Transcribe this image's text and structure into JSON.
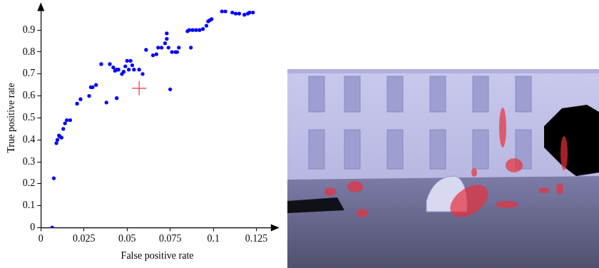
{
  "chart_data": {
    "type": "scatter",
    "x_label": "False positive rate",
    "y_label": "True positive rate",
    "xlim": [
      0,
      0.135
    ],
    "ylim": [
      0,
      1
    ],
    "xticks": [
      0,
      0.025,
      0.05,
      0.075,
      0.1,
      0.125
    ],
    "yticks": [
      0,
      0.1,
      0.2,
      0.3,
      0.4,
      0.5,
      0.6,
      0.7,
      0.8,
      0.9
    ],
    "grid": false,
    "series": [
      {
        "color": "#0000ff",
        "marker": "circle",
        "x": [
          0.0066,
          0.0075,
          0.009,
          0.0096,
          0.0105,
          0.011,
          0.012,
          0.013,
          0.014,
          0.015,
          0.017,
          0.021,
          0.023,
          0.028,
          0.029,
          0.03,
          0.032,
          0.035,
          0.038,
          0.04,
          0.042,
          0.043,
          0.044,
          0.044,
          0.045,
          0.047,
          0.048,
          0.049,
          0.05,
          0.051,
          0.052,
          0.053,
          0.054,
          0.057,
          0.059,
          0.061,
          0.065,
          0.067,
          0.068,
          0.07,
          0.072,
          0.073,
          0.073,
          0.074,
          0.075,
          0.076,
          0.078,
          0.079,
          0.08,
          0.085,
          0.086,
          0.087,
          0.088,
          0.09,
          0.092,
          0.094,
          0.096,
          0.097,
          0.098,
          0.099,
          0.105,
          0.107,
          0.111,
          0.113,
          0.115,
          0.118,
          0.12,
          0.121,
          0.123
        ],
        "values": [
          0,
          0.225,
          0.385,
          0.4,
          0.42,
          0.415,
          0.41,
          0.45,
          0.475,
          0.49,
          0.49,
          0.565,
          0.585,
          0.6,
          0.64,
          0.64,
          0.65,
          0.745,
          0.57,
          0.745,
          0.73,
          0.715,
          0.72,
          0.59,
          0.72,
          0.7,
          0.71,
          0.735,
          0.76,
          0.72,
          0.76,
          0.74,
          0.72,
          0.72,
          0.7,
          0.81,
          0.785,
          0.79,
          0.82,
          0.82,
          0.84,
          0.86,
          0.885,
          0.82,
          0.63,
          0.8,
          0.8,
          0.8,
          0.82,
          0.895,
          0.9,
          0.82,
          0.9,
          0.9,
          0.9,
          0.905,
          0.92,
          0.94,
          0.945,
          0.95,
          0.985,
          0.985,
          0.98,
          0.975,
          0.975,
          0.97,
          0.975,
          0.98,
          0.98
        ]
      },
      {
        "color": "#e8303a",
        "marker": "plus",
        "x": [
          0.057
        ],
        "values": [
          0.635
        ]
      }
    ]
  }
}
